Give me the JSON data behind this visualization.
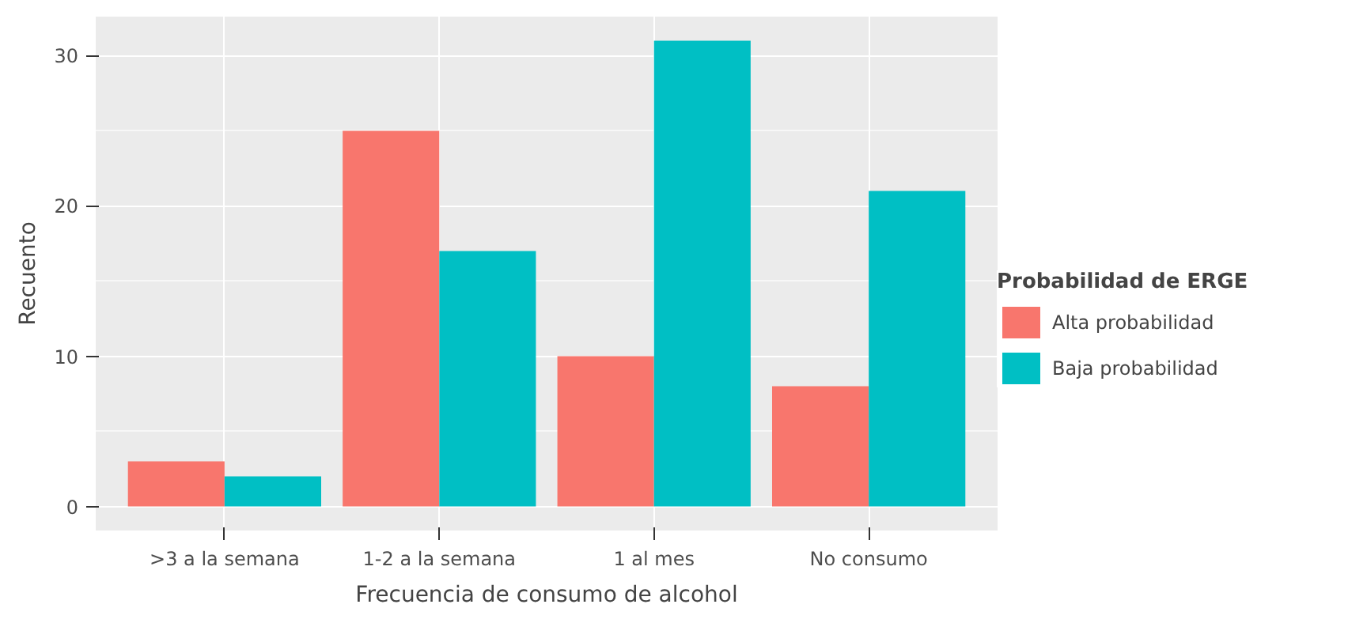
{
  "chart_data": {
    "type": "bar",
    "xlabel": "Frecuencia de consumo de alcohol",
    "ylabel": "Recuento",
    "legend_title": "Probabilidad de ERGE",
    "categories": [
      ">3 a la semana",
      "1-2 a la semana",
      "1 al mes",
      "No consumo"
    ],
    "series": [
      {
        "name": "Alta probabilidad",
        "color": "#f8766d",
        "values": [
          3,
          25,
          10,
          8
        ]
      },
      {
        "name": "Baja probabilidad",
        "color": "#00bfc4",
        "values": [
          2,
          17,
          31,
          21
        ]
      }
    ],
    "ylim": [
      -1.6,
      32.6
    ],
    "yticks": [
      0,
      10,
      20,
      30
    ],
    "grid": true,
    "legend": "right"
  }
}
